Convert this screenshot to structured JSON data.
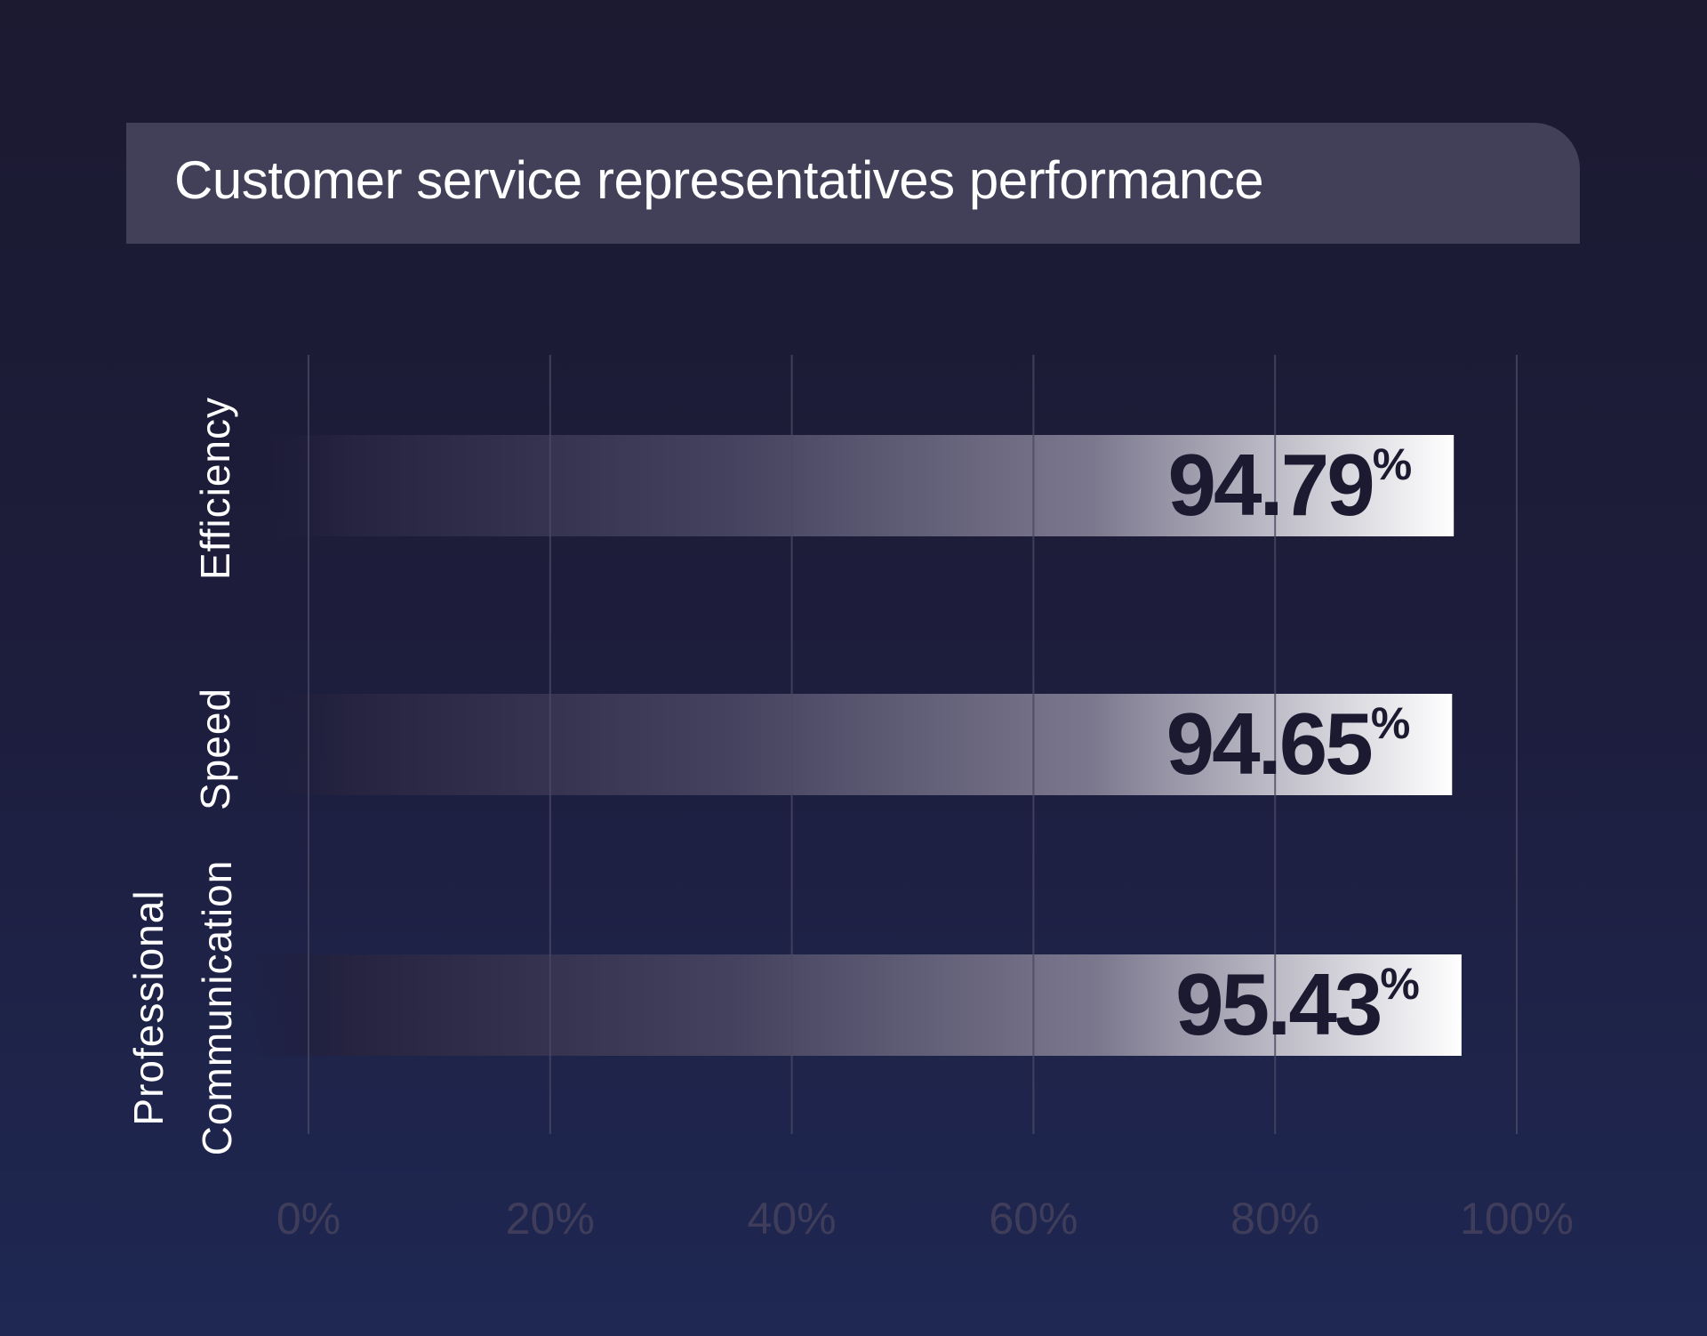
{
  "chart_data": {
    "type": "bar",
    "orientation": "horizontal",
    "title": "Customer service representatives performance",
    "categories": [
      [
        "Efficiency"
      ],
      [
        "Speed"
      ],
      [
        "Professional",
        "Communication"
      ]
    ],
    "values": [
      94.79,
      94.65,
      95.43
    ],
    "value_labels": [
      "94.79",
      "94.65",
      "95.43"
    ],
    "value_suffix": "%",
    "xlim": [
      0,
      100
    ],
    "xticks": [
      0,
      20,
      40,
      60,
      80,
      100
    ],
    "xtick_labels": [
      "0%",
      "20%",
      "40%",
      "60%",
      "80%",
      "100%"
    ],
    "grid": true,
    "colors": {
      "bar_end": "#ffffff",
      "bar_start": "#1e1c38",
      "value_text": "#1c1a30",
      "tick_text": "#3f3d5a",
      "grid": "#4a4862",
      "title_box": "#423f58"
    }
  }
}
